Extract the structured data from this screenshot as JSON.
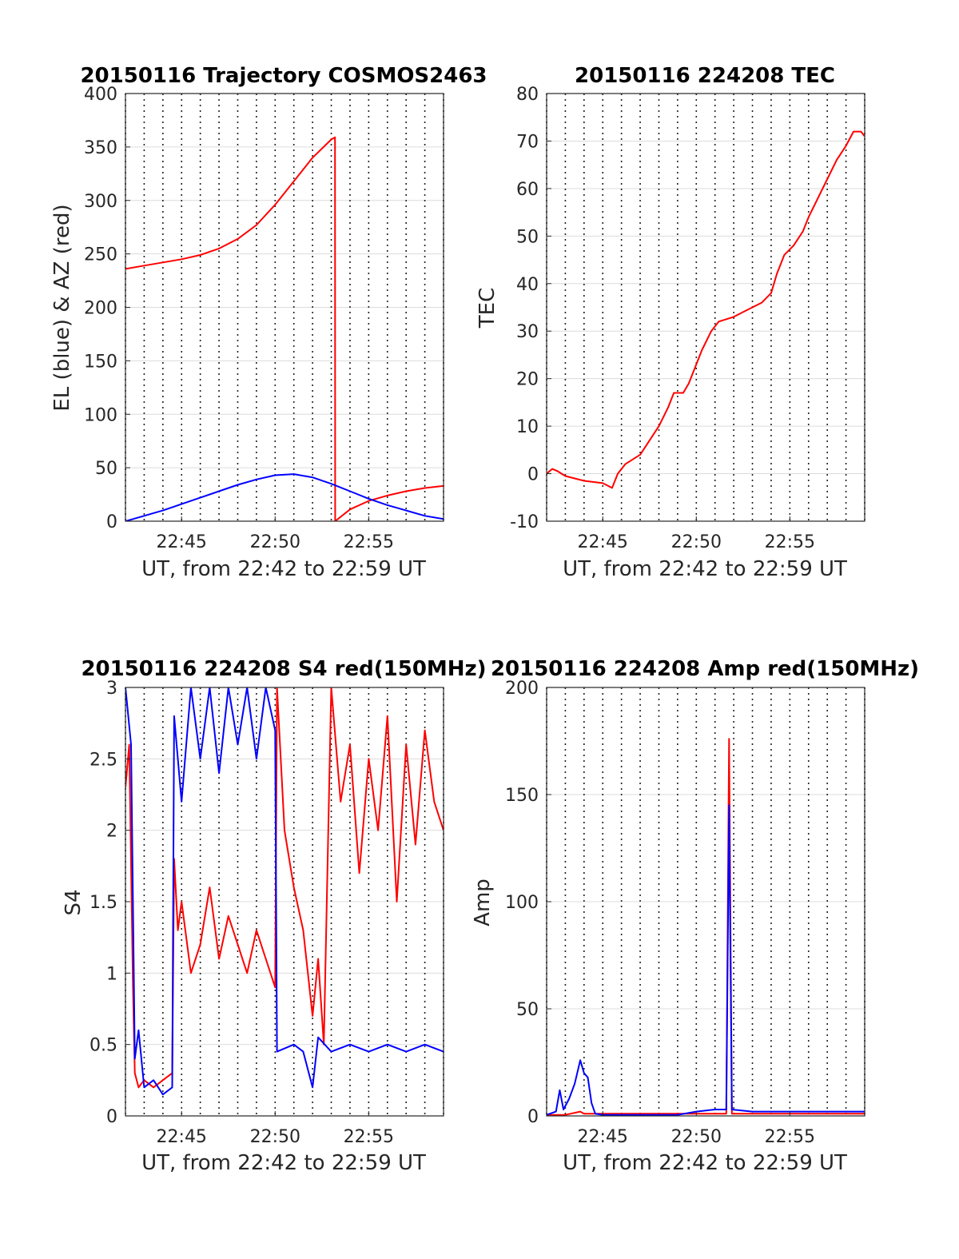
{
  "chart_data": [
    {
      "type": "line",
      "title": "20150116 Trajectory COSMOS2463",
      "xlabel": "UT, from 22:42 to 22:59 UT",
      "ylabel": "EL (blue) & AZ (red)",
      "xlim": [
        42,
        59
      ],
      "ylim": [
        0,
        400
      ],
      "x_ticks": [
        45,
        50,
        55
      ],
      "x_tick_labels": [
        "22:45",
        "22:50",
        "22:55"
      ],
      "y_ticks": [
        0,
        50,
        100,
        150,
        200,
        250,
        300,
        350,
        400
      ],
      "grid": true,
      "series": [
        {
          "color": "#ff0000",
          "points": [
            [
              42,
              236
            ],
            [
              43,
              239
            ],
            [
              44,
              242
            ],
            [
              45,
              245
            ],
            [
              46,
              249
            ],
            [
              47,
              255
            ],
            [
              48,
              264
            ],
            [
              49,
              277
            ],
            [
              50,
              296
            ],
            [
              51,
              318
            ],
            [
              52,
              340
            ],
            [
              53,
              357
            ],
            [
              53.2,
              359
            ],
            [
              53.21,
              0
            ],
            [
              54,
              11
            ],
            [
              55,
              19
            ],
            [
              56,
              24
            ],
            [
              57,
              28
            ],
            [
              58,
              31
            ],
            [
              59,
              33
            ]
          ]
        },
        {
          "color": "#0000ff",
          "points": [
            [
              42,
              0
            ],
            [
              43,
              5
            ],
            [
              44,
              10
            ],
            [
              45,
              16
            ],
            [
              46,
              22
            ],
            [
              47,
              28
            ],
            [
              48,
              34
            ],
            [
              49,
              39
            ],
            [
              50,
              43
            ],
            [
              51,
              44
            ],
            [
              52,
              41
            ],
            [
              53,
              35
            ],
            [
              54,
              28
            ],
            [
              55,
              21
            ],
            [
              56,
              15
            ],
            [
              57,
              10
            ],
            [
              58,
              5
            ],
            [
              59,
              2
            ]
          ]
        }
      ]
    },
    {
      "type": "line",
      "title": "20150116 224208 TEC",
      "xlabel": "UT, from 22:42 to 22:59 UT",
      "ylabel": "TEC",
      "xlim": [
        42,
        59
      ],
      "ylim": [
        -10,
        80
      ],
      "x_ticks": [
        45,
        50,
        55
      ],
      "x_tick_labels": [
        "22:45",
        "22:50",
        "22:55"
      ],
      "y_ticks": [
        -10,
        0,
        10,
        20,
        30,
        40,
        50,
        60,
        70,
        80
      ],
      "grid": true,
      "series": [
        {
          "color": "#ff0000",
          "points": [
            [
              42,
              0
            ],
            [
              42.3,
              1
            ],
            [
              42.6,
              0.5
            ],
            [
              43,
              -0.5
            ],
            [
              44,
              -1.5
            ],
            [
              45,
              -2
            ],
            [
              45.5,
              -3
            ],
            [
              45.8,
              0
            ],
            [
              46.2,
              2
            ],
            [
              47,
              4
            ],
            [
              47.5,
              7
            ],
            [
              48,
              10
            ],
            [
              48.5,
              14
            ],
            [
              48.8,
              17
            ],
            [
              49.3,
              17
            ],
            [
              49.6,
              19
            ],
            [
              50,
              23
            ],
            [
              50.3,
              26
            ],
            [
              50.8,
              30
            ],
            [
              51.2,
              32
            ],
            [
              52,
              33
            ],
            [
              52.5,
              34
            ],
            [
              53,
              35
            ],
            [
              53.5,
              36
            ],
            [
              54,
              38
            ],
            [
              54.3,
              42
            ],
            [
              54.7,
              46
            ],
            [
              55.2,
              48
            ],
            [
              55.7,
              51
            ],
            [
              56,
              54
            ],
            [
              56.5,
              58
            ],
            [
              57,
              62
            ],
            [
              57.5,
              66
            ],
            [
              58,
              69
            ],
            [
              58.4,
              72
            ],
            [
              58.8,
              72
            ],
            [
              59,
              71
            ]
          ]
        }
      ]
    },
    {
      "type": "line",
      "title": "20150116 224208 S4 red(150MHz)",
      "xlabel": "UT, from 22:42 to 22:59 UT",
      "ylabel": "S4",
      "xlim": [
        42,
        59
      ],
      "ylim": [
        0,
        3
      ],
      "x_ticks": [
        45,
        50,
        55
      ],
      "x_tick_labels": [
        "22:45",
        "22:50",
        "22:55"
      ],
      "y_ticks": [
        0,
        0.5,
        1,
        1.5,
        2,
        2.5,
        3
      ],
      "grid": true,
      "series": [
        {
          "color": "#ff0000",
          "points": [
            [
              42,
              2.3
            ],
            [
              42.2,
              2.6
            ],
            [
              42.4,
              0.9
            ],
            [
              42.5,
              0.3
            ],
            [
              42.7,
              0.2
            ],
            [
              43,
              0.25
            ],
            [
              43.5,
              0.2
            ],
            [
              44,
              0.25
            ],
            [
              44.5,
              0.3
            ],
            [
              44.6,
              1.8
            ],
            [
              44.8,
              1.3
            ],
            [
              45,
              1.5
            ],
            [
              45.5,
              1.0
            ],
            [
              46,
              1.2
            ],
            [
              46.5,
              1.6
            ],
            [
              47,
              1.1
            ],
            [
              47.5,
              1.4
            ],
            [
              48,
              1.2
            ],
            [
              48.5,
              1.0
            ],
            [
              49,
              1.3
            ],
            [
              49.5,
              1.1
            ],
            [
              50,
              0.9
            ],
            [
              50.1,
              3
            ],
            [
              50.5,
              2.0
            ],
            [
              51,
              1.6
            ],
            [
              51.5,
              1.3
            ],
            [
              52,
              0.7
            ],
            [
              52.3,
              1.1
            ],
            [
              52.6,
              0.5
            ],
            [
              53,
              3
            ],
            [
              53.5,
              2.2
            ],
            [
              54,
              2.6
            ],
            [
              54.5,
              1.7
            ],
            [
              55,
              2.5
            ],
            [
              55.5,
              2.0
            ],
            [
              56,
              2.8
            ],
            [
              56.5,
              1.5
            ],
            [
              57,
              2.6
            ],
            [
              57.5,
              1.9
            ],
            [
              58,
              2.7
            ],
            [
              58.5,
              2.2
            ],
            [
              59,
              2.0
            ]
          ]
        },
        {
          "color": "#0000ff",
          "points": [
            [
              42,
              3
            ],
            [
              42.3,
              2.6
            ],
            [
              42.5,
              0.4
            ],
            [
              42.7,
              0.6
            ],
            [
              43,
              0.2
            ],
            [
              43.5,
              0.25
            ],
            [
              44,
              0.15
            ],
            [
              44.5,
              0.2
            ],
            [
              44.6,
              2.8
            ],
            [
              45,
              2.2
            ],
            [
              45.5,
              3
            ],
            [
              46,
              2.5
            ],
            [
              46.5,
              3
            ],
            [
              47,
              2.4
            ],
            [
              47.5,
              3
            ],
            [
              48,
              2.6
            ],
            [
              48.5,
              3
            ],
            [
              49,
              2.5
            ],
            [
              49.5,
              3
            ],
            [
              50,
              2.7
            ],
            [
              50.1,
              0.45
            ],
            [
              51,
              0.5
            ],
            [
              51.5,
              0.45
            ],
            [
              52,
              0.2
            ],
            [
              52.3,
              0.55
            ],
            [
              53,
              0.45
            ],
            [
              54,
              0.5
            ],
            [
              55,
              0.45
            ],
            [
              56,
              0.5
            ],
            [
              57,
              0.45
            ],
            [
              58,
              0.5
            ],
            [
              59,
              0.45
            ]
          ]
        }
      ]
    },
    {
      "type": "line",
      "title": "20150116 224208 Amp red(150MHz)",
      "xlabel": "UT, from 22:42 to 22:59 UT",
      "ylabel": "Amp",
      "xlim": [
        42,
        59
      ],
      "ylim": [
        0,
        200
      ],
      "x_ticks": [
        45,
        50,
        55
      ],
      "x_tick_labels": [
        "22:45",
        "22:50",
        "22:55"
      ],
      "y_ticks": [
        0,
        50,
        100,
        150,
        200
      ],
      "grid": true,
      "series": [
        {
          "color": "#ff0000",
          "points": [
            [
              42,
              0.5
            ],
            [
              43,
              0.5
            ],
            [
              43.8,
              2
            ],
            [
              44,
              1
            ],
            [
              45,
              1
            ],
            [
              46,
              1
            ],
            [
              47,
              1
            ],
            [
              48,
              1
            ],
            [
              49,
              1
            ],
            [
              50,
              1
            ],
            [
              51,
              1
            ],
            [
              51.6,
              1
            ],
            [
              51.75,
              176
            ],
            [
              51.9,
              1
            ],
            [
              53,
              1
            ],
            [
              54,
              1
            ],
            [
              55,
              1
            ],
            [
              56,
              1
            ],
            [
              57,
              1
            ],
            [
              58,
              1
            ],
            [
              59,
              1
            ]
          ]
        },
        {
          "color": "#0000ff",
          "points": [
            [
              42,
              0.5
            ],
            [
              42.5,
              2
            ],
            [
              42.7,
              12
            ],
            [
              42.9,
              3
            ],
            [
              43.2,
              8
            ],
            [
              43.5,
              15
            ],
            [
              43.8,
              26
            ],
            [
              44,
              20
            ],
            [
              44.2,
              18
            ],
            [
              44.4,
              6
            ],
            [
              44.6,
              1
            ],
            [
              45,
              0.5
            ],
            [
              46,
              0.5
            ],
            [
              47,
              0.5
            ],
            [
              48,
              0.5
            ],
            [
              49,
              0.5
            ],
            [
              50,
              2
            ],
            [
              51,
              3
            ],
            [
              51.6,
              3
            ],
            [
              51.75,
              145
            ],
            [
              51.9,
              3
            ],
            [
              53,
              2
            ],
            [
              54,
              2
            ],
            [
              55,
              2
            ],
            [
              56,
              2
            ],
            [
              57,
              2
            ],
            [
              58,
              2
            ],
            [
              59,
              2
            ]
          ]
        }
      ]
    }
  ]
}
